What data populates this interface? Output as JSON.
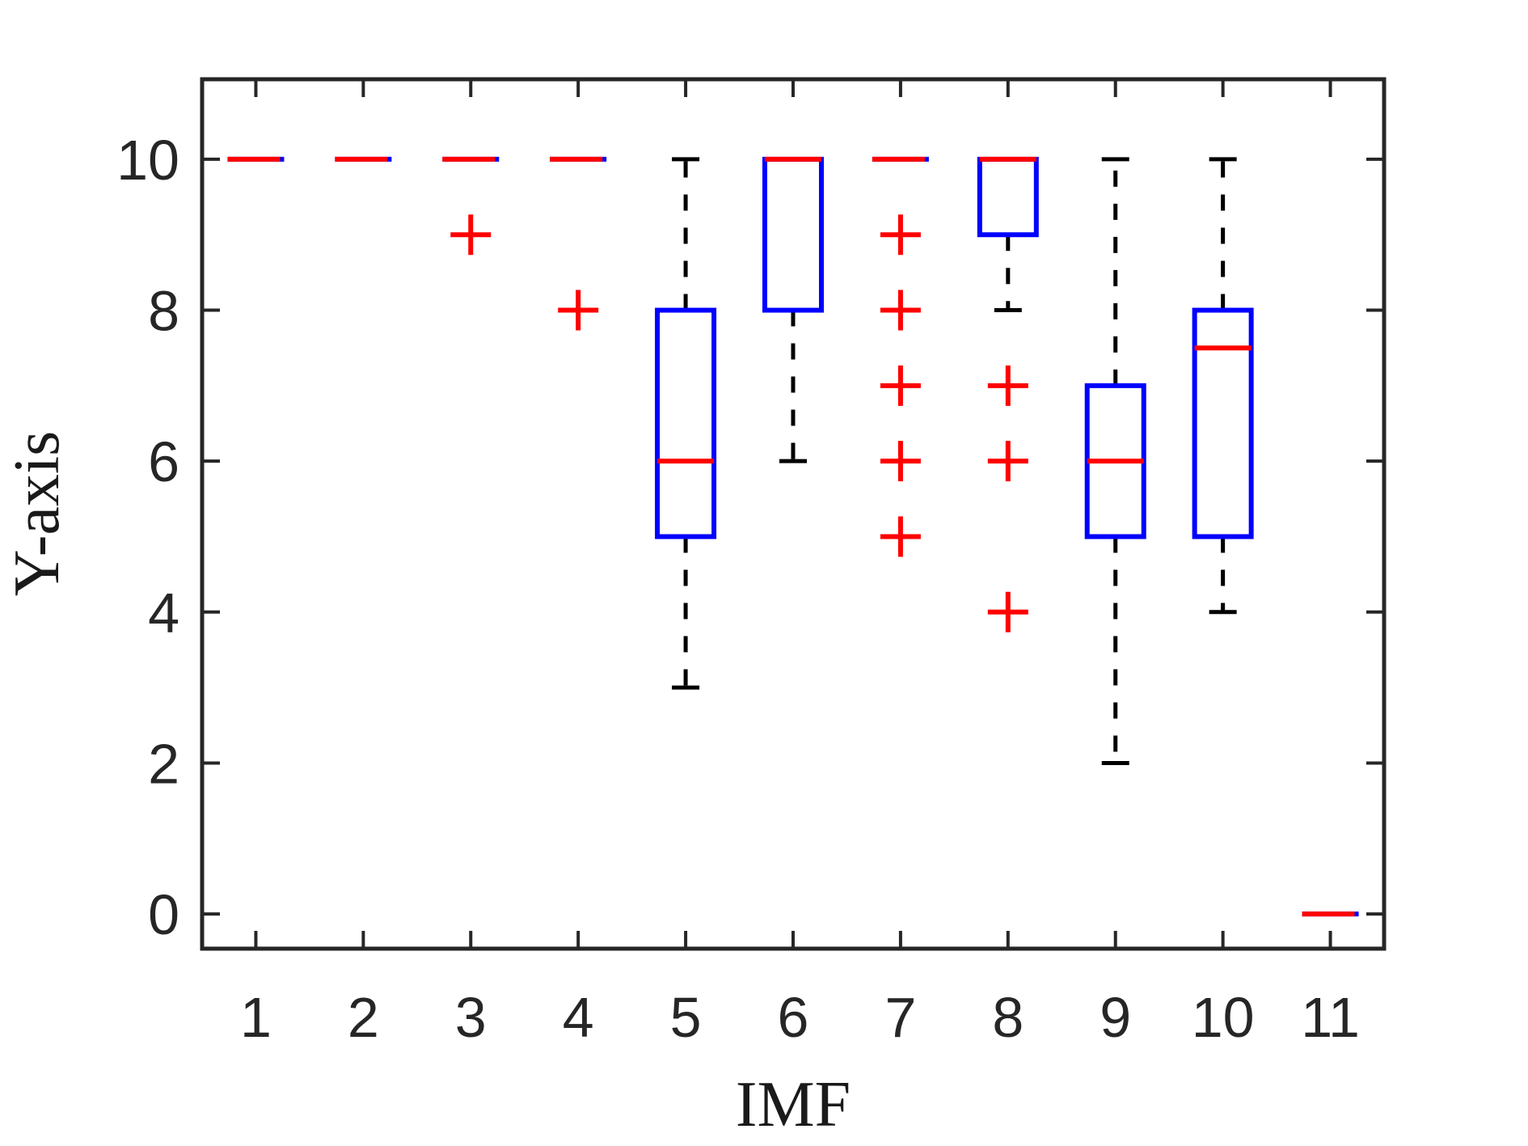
{
  "figure": {
    "background": "#ffffff",
    "colors": {
      "box": "#0000ff",
      "median": "#ff0000",
      "whisker": "#000000",
      "cap": "#000000",
      "outlier": "#ff0000",
      "axis": "#262626"
    }
  },
  "chart_data": {
    "type": "boxplot",
    "title": "",
    "xlabel": "IMF",
    "ylabel": "Y-axis",
    "categories": [
      "1",
      "2",
      "3",
      "4",
      "5",
      "6",
      "7",
      "8",
      "9",
      "10",
      "11"
    ],
    "x_ticks": [
      "1",
      "2",
      "3",
      "4",
      "5",
      "6",
      "7",
      "8",
      "9",
      "10",
      "11"
    ],
    "y_ticks": [
      0,
      2,
      4,
      6,
      8,
      10
    ],
    "xlim": [
      0.5,
      11.5
    ],
    "ylim": [
      -0.46,
      11.06
    ],
    "grid": false,
    "legend": null,
    "whisker_style": "dashed",
    "outlier_marker": "plus",
    "series": [
      {
        "x": 1,
        "median": 10,
        "q1": 10,
        "q3": 10,
        "whisker_low": 10,
        "whisker_high": 10,
        "outliers": []
      },
      {
        "x": 2,
        "median": 10,
        "q1": 10,
        "q3": 10,
        "whisker_low": 10,
        "whisker_high": 10,
        "outliers": []
      },
      {
        "x": 3,
        "median": 10,
        "q1": 10,
        "q3": 10,
        "whisker_low": 10,
        "whisker_high": 10,
        "outliers": [
          9
        ]
      },
      {
        "x": 4,
        "median": 10,
        "q1": 10,
        "q3": 10,
        "whisker_low": 10,
        "whisker_high": 10,
        "outliers": [
          8
        ]
      },
      {
        "x": 5,
        "median": 6,
        "q1": 5,
        "q3": 8,
        "whisker_low": 3,
        "whisker_high": 10,
        "outliers": []
      },
      {
        "x": 6,
        "median": 10,
        "q1": 8,
        "q3": 10,
        "whisker_low": 6,
        "whisker_high": 10,
        "outliers": []
      },
      {
        "x": 7,
        "median": 10,
        "q1": 10,
        "q3": 10,
        "whisker_low": 10,
        "whisker_high": 10,
        "outliers": [
          9,
          8,
          7,
          6,
          5
        ]
      },
      {
        "x": 8,
        "median": 10,
        "q1": 9,
        "q3": 10,
        "whisker_low": 8,
        "whisker_high": 10,
        "outliers": [
          7,
          6,
          4
        ]
      },
      {
        "x": 9,
        "median": 6,
        "q1": 5,
        "q3": 7,
        "whisker_low": 2,
        "whisker_high": 10,
        "outliers": []
      },
      {
        "x": 10,
        "median": 7.5,
        "q1": 5,
        "q3": 8,
        "whisker_low": 4,
        "whisker_high": 10,
        "outliers": []
      },
      {
        "x": 11,
        "median": 0,
        "q1": 0,
        "q3": 0,
        "whisker_low": 0,
        "whisker_high": 0,
        "outliers": []
      }
    ]
  }
}
